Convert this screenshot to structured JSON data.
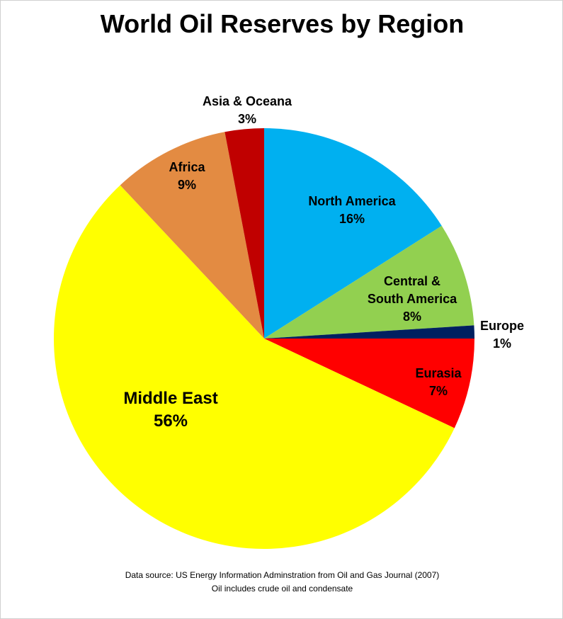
{
  "chart_data": {
    "type": "pie",
    "title": "World Oil Reserves by Region",
    "categories": [
      "North America",
      "Central &\nSouth America",
      "Europe",
      "Eurasia",
      "Middle East",
      "Africa",
      "Asia & Oceana"
    ],
    "values": [
      16,
      8,
      1,
      7,
      56,
      9,
      3
    ],
    "value_labels": [
      "16%",
      "8%",
      "1%",
      "7%",
      "56%",
      "9%",
      "3%"
    ],
    "colors": [
      "#00b0f0",
      "#92d050",
      "#002060",
      "#ff0000",
      "#ffff00",
      "#e38b42",
      "#c00000"
    ],
    "source": "Data source: US Energy Information Adminstration from  Oil and Gas Journal (2007)",
    "note": "Oil includes crude oil and condensate"
  }
}
